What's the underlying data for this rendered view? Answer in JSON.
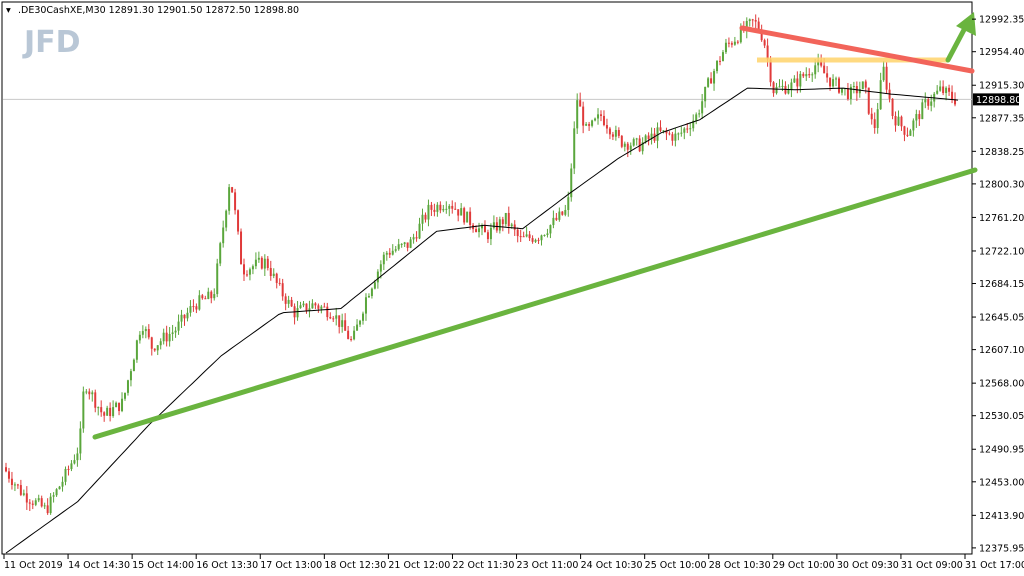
{
  "header": {
    "symbol_line": ".DE30CashXE,M30  12891.30 12901.50 12872.50 12898.80"
  },
  "logo": {
    "text": "JFD"
  },
  "current_price": {
    "label": "12898.80",
    "value": 12898.8
  },
  "chart_data": {
    "type": "candlestick",
    "title": ".DE30CashXE,M30",
    "ohlc_last": {
      "open": 12891.3,
      "high": 12901.5,
      "low": 12872.5,
      "close": 12898.8
    },
    "ylim": [
      12370,
      13010
    ],
    "y_ticks": [
      "12992.35",
      "12954.40",
      "12915.30",
      "12877.35",
      "12838.25",
      "12800.30",
      "12761.20",
      "12722.10",
      "12684.15",
      "12645.05",
      "12607.10",
      "12568.00",
      "12530.05",
      "12490.95",
      "12453.00",
      "12413.90",
      "12375.95"
    ],
    "x_ticks": [
      "11 Oct 2019",
      "14 Oct 14:30",
      "15 Oct 14:00",
      "16 Oct 13:30",
      "17 Oct 13:00",
      "18 Oct 12:30",
      "21 Oct 12:00",
      "22 Oct 11:30",
      "23 Oct 11:00",
      "24 Oct 10:30",
      "25 Oct 10:00",
      "28 Oct 10:30",
      "29 Oct 10:00",
      "30 Oct 09:30",
      "31 Oct 09:00",
      "31 Oct 17:00"
    ],
    "candle_count": 320,
    "price_path": [
      [
        0,
        12470
      ],
      [
        8,
        12440
      ],
      [
        18,
        12420
      ],
      [
        26,
        12460
      ],
      [
        32,
        12495
      ],
      [
        34,
        12570
      ],
      [
        42,
        12530
      ],
      [
        50,
        12545
      ],
      [
        58,
        12640
      ],
      [
        62,
        12610
      ],
      [
        72,
        12630
      ],
      [
        80,
        12660
      ],
      [
        88,
        12670
      ],
      [
        95,
        12810
      ],
      [
        100,
        12700
      ],
      [
        110,
        12710
      ],
      [
        115,
        12680
      ],
      [
        122,
        12650
      ],
      [
        130,
        12660
      ],
      [
        138,
        12650
      ],
      [
        146,
        12615
      ],
      [
        152,
        12670
      ],
      [
        160,
        12720
      ],
      [
        170,
        12730
      ],
      [
        178,
        12770
      ],
      [
        186,
        12780
      ],
      [
        194,
        12760
      ],
      [
        202,
        12740
      ],
      [
        210,
        12760
      ],
      [
        216,
        12735
      ],
      [
        224,
        12740
      ],
      [
        232,
        12760
      ],
      [
        236,
        12770
      ],
      [
        240,
        12900
      ],
      [
        244,
        12860
      ],
      [
        250,
        12880
      ],
      [
        258,
        12850
      ],
      [
        266,
        12845
      ],
      [
        274,
        12860
      ],
      [
        282,
        12855
      ],
      [
        290,
        12880
      ],
      [
        296,
        12925
      ],
      [
        302,
        12960
      ],
      [
        308,
        12975
      ],
      [
        314,
        12990
      ],
      [
        318,
        12970
      ],
      [
        322,
        12910
      ],
      [
        330,
        12915
      ],
      [
        340,
        12940
      ],
      [
        346,
        12920
      ],
      [
        354,
        12905
      ],
      [
        360,
        12915
      ],
      [
        364,
        12860
      ],
      [
        368,
        12935
      ],
      [
        372,
        12880
      ],
      [
        378,
        12860
      ],
      [
        386,
        12895
      ],
      [
        392,
        12910
      ],
      [
        398,
        12898.8
      ]
    ],
    "moving_average": [
      [
        0,
        12370
      ],
      [
        30,
        12430
      ],
      [
        60,
        12520
      ],
      [
        90,
        12600
      ],
      [
        115,
        12650
      ],
      [
        140,
        12655
      ],
      [
        160,
        12700
      ],
      [
        180,
        12745
      ],
      [
        200,
        12752
      ],
      [
        216,
        12748
      ],
      [
        236,
        12790
      ],
      [
        256,
        12830
      ],
      [
        274,
        12860
      ],
      [
        290,
        12875
      ],
      [
        310,
        12912
      ],
      [
        330,
        12910
      ],
      [
        350,
        12912
      ],
      [
        370,
        12905
      ],
      [
        398,
        12898
      ]
    ],
    "trendlines": [
      {
        "name": "support",
        "color": "#6ab43f",
        "from": [
          0,
          12510
        ],
        "to": [
          398,
          12825
        ]
      },
      {
        "name": "resistance",
        "color": "#f2645a",
        "from": [
          290,
          12990
        ],
        "to": [
          398,
          12940
        ]
      },
      {
        "name": "horizontal",
        "color": "#ffd36b",
        "from": [
          310,
          12955
        ],
        "to": [
          398,
          12955
        ]
      }
    ],
    "arrow": {
      "color": "#6ab43f",
      "direction": "up"
    },
    "colors": {
      "bull": "#5aa63c",
      "bear": "#e03a3a",
      "ma": "#000000",
      "price_line": "#c8c8c8",
      "price_tag": "#000000"
    },
    "grid": false
  }
}
